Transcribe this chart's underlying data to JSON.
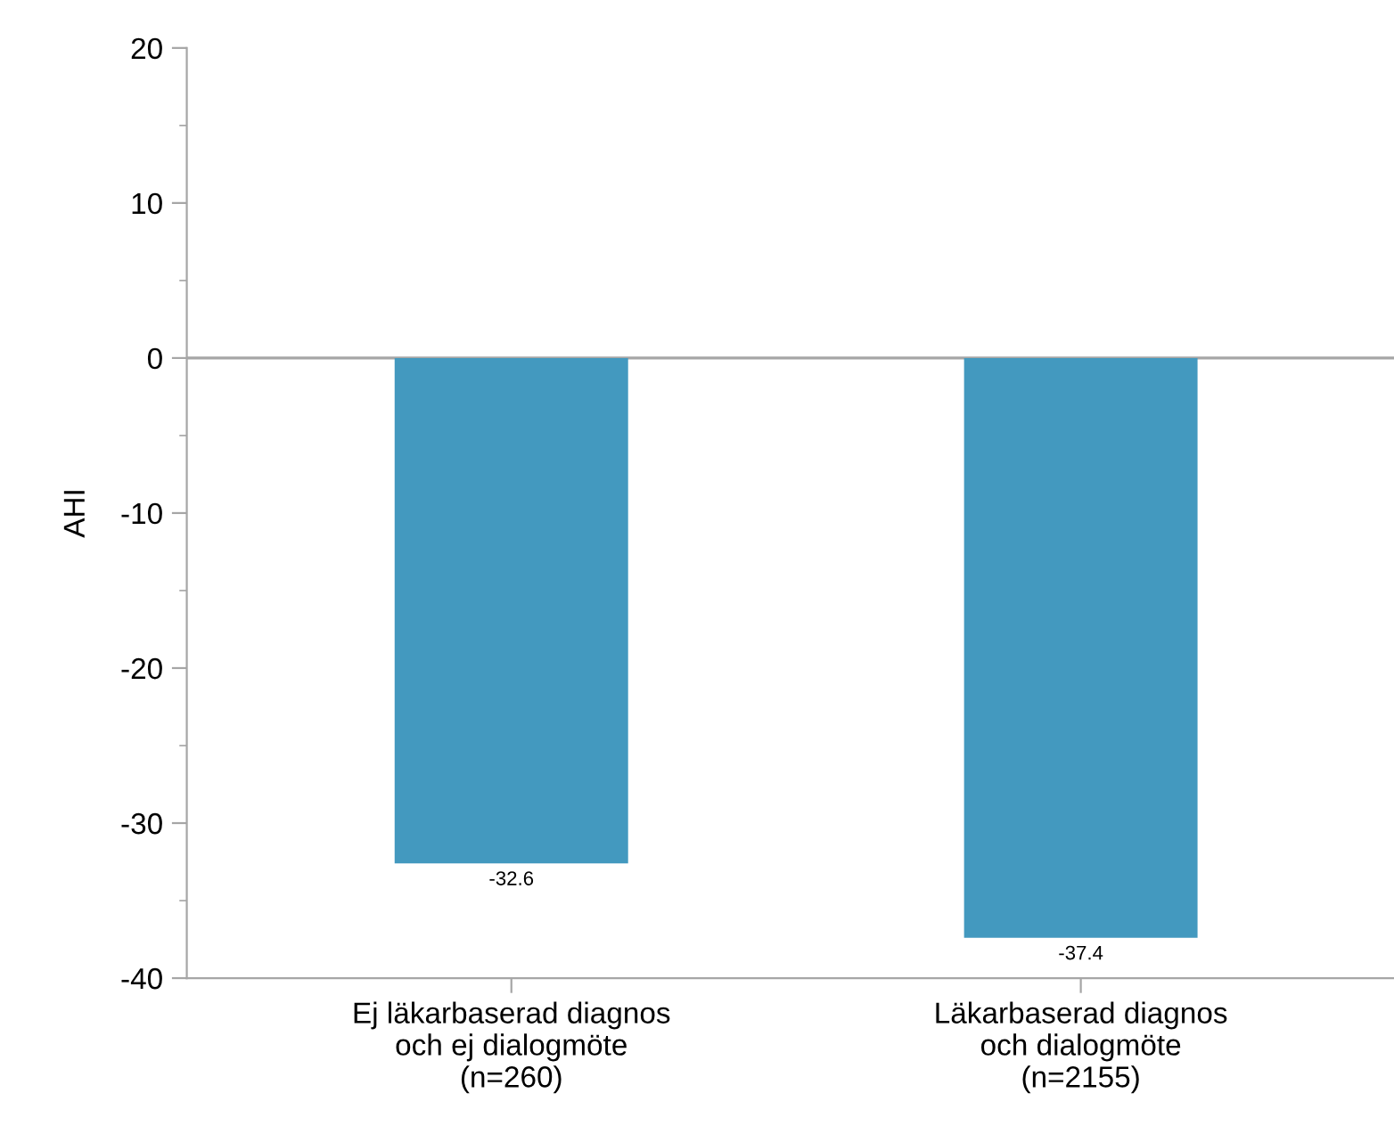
{
  "chart_data": {
    "type": "bar",
    "ylabel": "AHI",
    "categories": [
      "Ej läkarbaserad diagnos\noch ej dialogmöte\n(n=260)",
      "Läkarbaserad diagnos\noch dialogmöte\n(n=2155)"
    ],
    "values": [
      -32.6,
      -37.4
    ],
    "color": "#4399bf",
    "ylim": [
      -40,
      20
    ],
    "yticks": [
      {
        "value": -40,
        "label": "-40"
      },
      {
        "value": -30,
        "label": "-30"
      },
      {
        "value": -20,
        "label": "-20"
      },
      {
        "value": -10,
        "label": "-10"
      },
      0,
      10,
      20
    ],
    "ref_lines": [
      {
        "axis": "y",
        "value": 0,
        "color": "#a6a6a6"
      }
    ],
    "data_labels": true,
    "grid": false,
    "legend": false
  }
}
